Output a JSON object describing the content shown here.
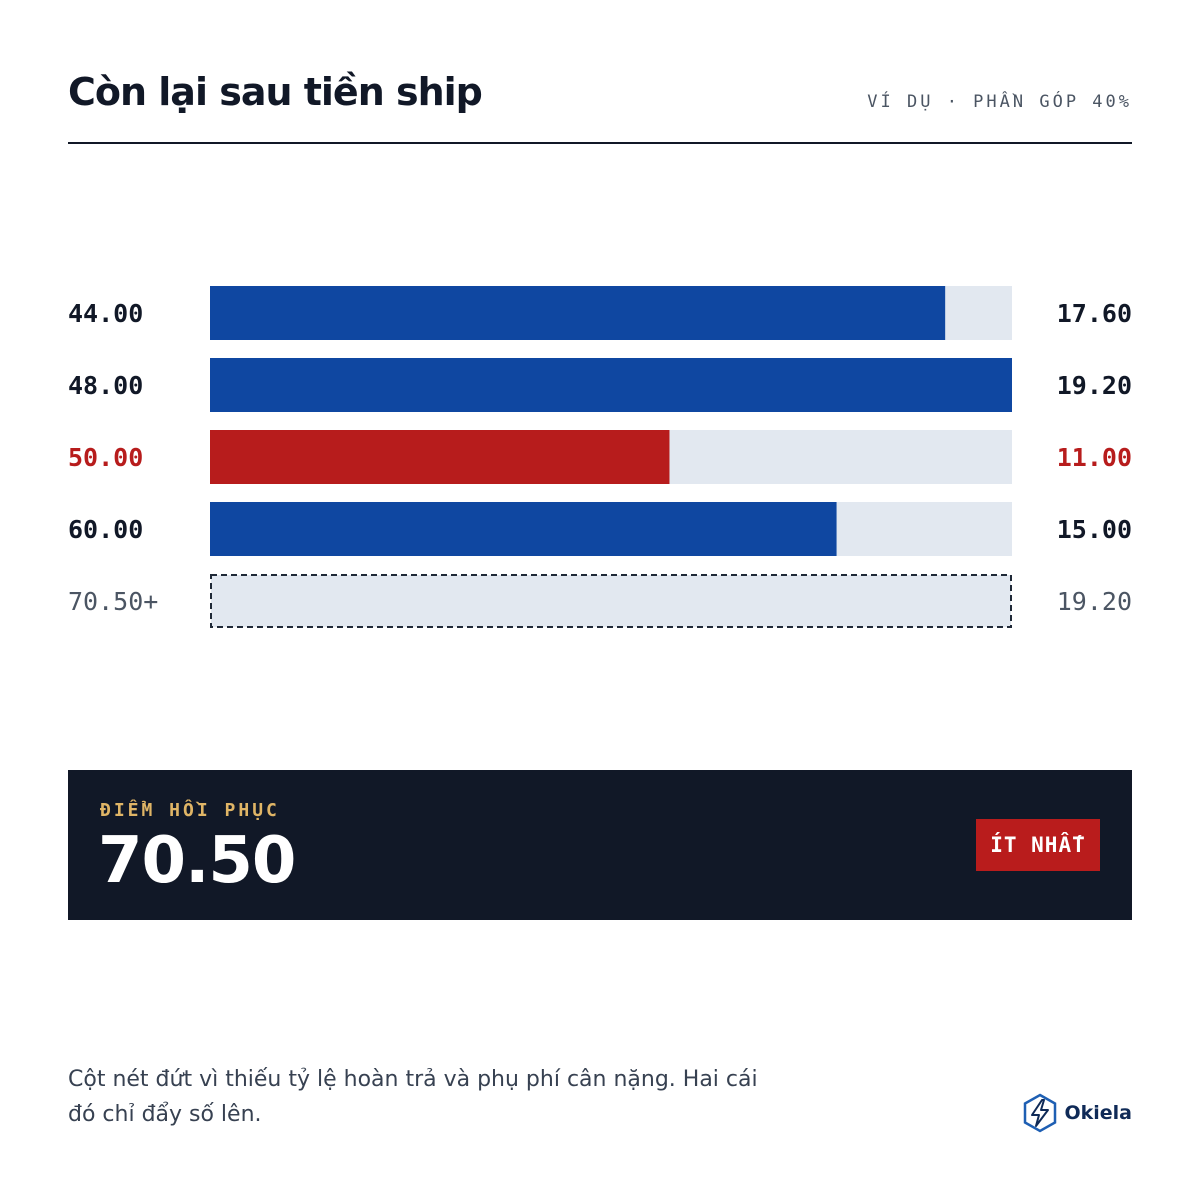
{
  "header": {
    "title": "Còn lại sau tiền ship",
    "subtitle": "VÍ DỤ · PHẦN GÓP 40%"
  },
  "chart_data": {
    "type": "bar",
    "orientation": "horizontal",
    "left_labels": [
      "44.00",
      "48.00",
      "50.00",
      "60.00",
      "70.50+"
    ],
    "right_labels": [
      "17.60",
      "19.20",
      "11.00",
      "15.00",
      "19.20"
    ],
    "values": [
      17.6,
      19.2,
      11.0,
      15.0,
      null
    ],
    "xlim": [
      0,
      19.2
    ],
    "highlight_index": 2,
    "dashed_index": 4,
    "colors": {
      "bar": "#0f47a1",
      "highlight": "#b71c1c",
      "track": "#e2e8f0",
      "label": "#111827",
      "muted_label": "#4b5563",
      "dashed_border": "#1f2937"
    }
  },
  "banner": {
    "label": "ĐIỂM HỒI PHỤC",
    "value": "70.50",
    "badge": "ÍT NHẤT"
  },
  "footer": {
    "note": "Cột nét đứt vì thiếu tỷ lệ hoàn trả và phụ phí cân nặng. Hai cái đó chỉ đẩy số lên.",
    "brand": "Okiela",
    "brand_icon": "lightning-hexagon-icon"
  }
}
